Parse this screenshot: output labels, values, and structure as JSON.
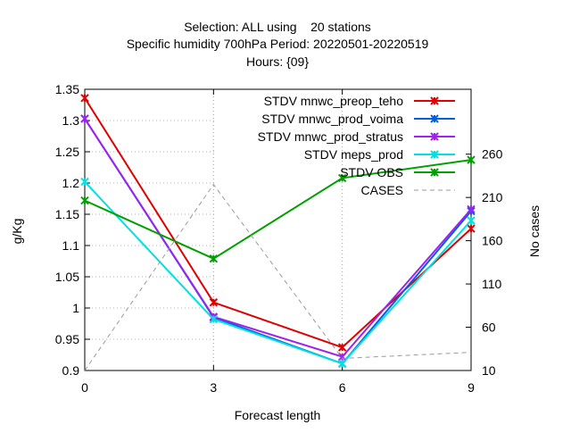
{
  "title_lines": [
    "Selection: ALL using    20 stations",
    "Specific humidity 700hPa   Period: 20220501-20220519",
    "Hours: {09}"
  ],
  "chart_data": {
    "type": "line",
    "xlabel": "Forecast length",
    "ylabel": "g/Kg",
    "y2label": "No cases",
    "x": [
      0,
      3,
      6,
      9
    ],
    "x_ticks": [
      "0",
      "3",
      "6",
      "9"
    ],
    "xlim": [
      0,
      9
    ],
    "ylim": [
      0.9,
      1.35
    ],
    "y_ticks": [
      "0.9",
      "0.95",
      "1",
      "1.05",
      "1.1",
      "1.15",
      "1.2",
      "1.25",
      "1.3",
      "1.35"
    ],
    "y2lim": [
      10,
      335
    ],
    "y2_ticks": [
      "10",
      "60",
      "110",
      "160",
      "210",
      "260"
    ],
    "grid": "dotted at x ticks",
    "legend_position": "top-right",
    "series": [
      {
        "name": "STDV mnwc_preop_teho",
        "axis": "y",
        "color": "#e00000",
        "marker": "x",
        "dash": "solid",
        "values": [
          1.336,
          1.009,
          0.937,
          1.127
        ]
      },
      {
        "name": "STDV mnwc_prod_voima",
        "axis": "y",
        "color": "#0060e0",
        "marker": "x",
        "dash": "solid",
        "values": [
          1.303,
          0.985,
          0.911,
          1.155
        ]
      },
      {
        "name": "STDV mnwc_prod_stratus",
        "axis": "y",
        "color": "#a020f0",
        "marker": "x",
        "dash": "solid",
        "values": [
          1.303,
          0.986,
          0.922,
          1.158
        ]
      },
      {
        "name": "STDV meps_prod",
        "axis": "y",
        "color": "#00e0e0",
        "marker": "x",
        "dash": "solid",
        "values": [
          1.202,
          0.982,
          0.911,
          1.14
        ]
      },
      {
        "name": "STDV OBS",
        "axis": "y",
        "color": "#00a000",
        "marker": "x",
        "dash": "solid",
        "values": [
          1.172,
          1.079,
          1.208,
          1.237
        ]
      },
      {
        "name": "CASES",
        "axis": "y2",
        "color": "#999999",
        "marker": "none",
        "dash": "dashed",
        "values": [
          10,
          225,
          24,
          31
        ]
      }
    ]
  }
}
